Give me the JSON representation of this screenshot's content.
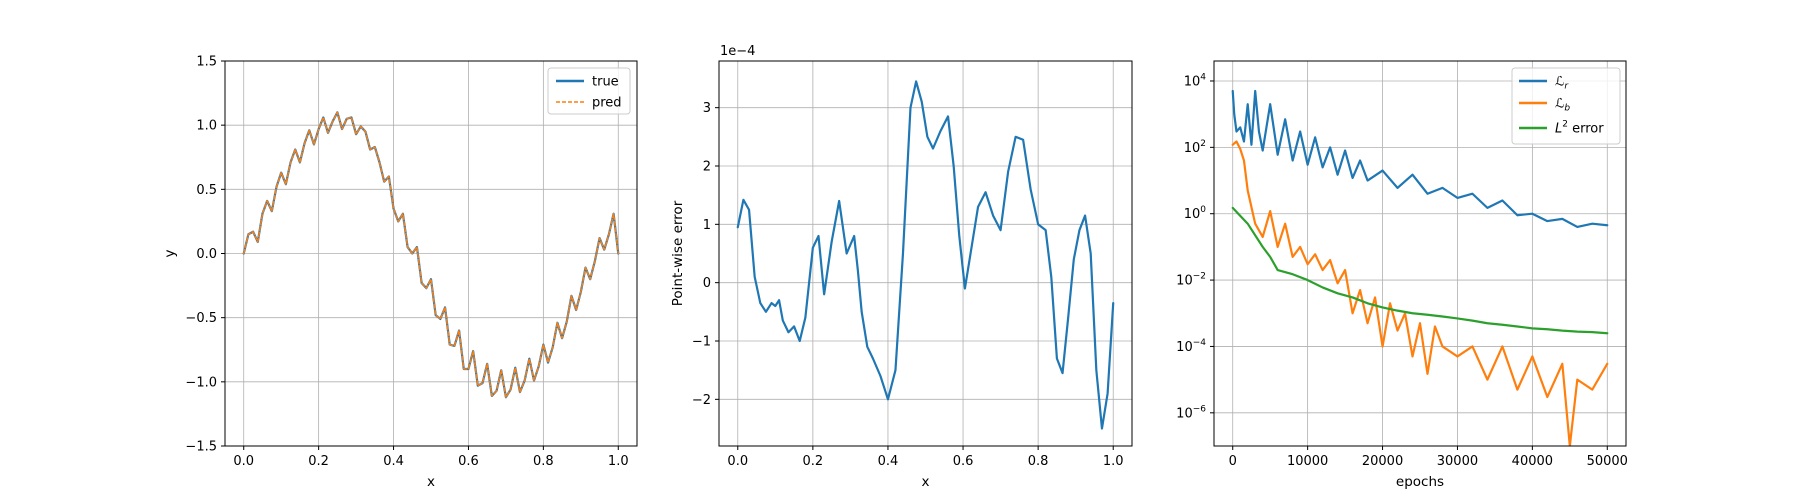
{
  "chart_data": [
    {
      "id": "fit",
      "type": "line",
      "title": "",
      "xlabel": "x",
      "ylabel": "y",
      "xlim": [
        -0.05,
        1.05
      ],
      "ylim": [
        -1.5,
        1.5
      ],
      "xticks": [
        0.0,
        0.2,
        0.4,
        0.6,
        0.8,
        1.0
      ],
      "xtick_labels": [
        "0.0",
        "0.2",
        "0.4",
        "0.6",
        "0.8",
        "1.0"
      ],
      "yticks": [
        -1.5,
        -1.0,
        -0.5,
        0.0,
        0.5,
        1.0,
        1.5
      ],
      "ytick_labels": [
        "−1.5",
        "−1.0",
        "−0.5",
        "0.0",
        "0.5",
        "1.0",
        "1.5"
      ],
      "grid": true,
      "legend_position": "top-right",
      "series": [
        {
          "name": "true",
          "color": "#1f77b4",
          "style": "solid",
          "x": [
            0.0,
            0.0125,
            0.025,
            0.0375,
            0.05,
            0.0625,
            0.075,
            0.0875,
            0.1,
            0.1125,
            0.125,
            0.1375,
            0.15,
            0.1625,
            0.175,
            0.1875,
            0.2,
            0.2125,
            0.225,
            0.2375,
            0.25,
            0.2625,
            0.275,
            0.2875,
            0.3,
            0.3125,
            0.325,
            0.3375,
            0.35,
            0.3625,
            0.375,
            0.3875,
            0.4,
            0.4125,
            0.425,
            0.4375,
            0.45,
            0.4625,
            0.475,
            0.4875,
            0.5,
            0.5125,
            0.525,
            0.5375,
            0.55,
            0.5625,
            0.575,
            0.5875,
            0.6,
            0.6125,
            0.625,
            0.6375,
            0.65,
            0.6625,
            0.675,
            0.6875,
            0.7,
            0.7125,
            0.725,
            0.7375,
            0.75,
            0.7625,
            0.775,
            0.7875,
            0.8,
            0.8125,
            0.825,
            0.8375,
            0.85,
            0.8625,
            0.875,
            0.8875,
            0.9,
            0.9125,
            0.925,
            0.9375,
            0.95,
            0.9625,
            0.975,
            0.9875,
            1.0
          ],
          "y": [
            0.0,
            0.15,
            0.17,
            0.09,
            0.31,
            0.41,
            0.33,
            0.52,
            0.63,
            0.54,
            0.71,
            0.81,
            0.71,
            0.86,
            0.96,
            0.85,
            0.97,
            1.06,
            0.94,
            1.03,
            1.1,
            0.97,
            1.05,
            1.06,
            0.93,
            0.99,
            0.95,
            0.81,
            0.83,
            0.71,
            0.56,
            0.6,
            0.35,
            0.25,
            0.31,
            0.05,
            0.0,
            0.05,
            -0.23,
            -0.27,
            -0.2,
            -0.48,
            -0.51,
            -0.42,
            -0.71,
            -0.72,
            -0.6,
            -0.9,
            -0.9,
            -0.76,
            -1.03,
            -1.01,
            -0.86,
            -1.11,
            -1.07,
            -0.91,
            -1.12,
            -1.06,
            -0.89,
            -1.08,
            -0.99,
            -0.82,
            -0.99,
            -0.88,
            -0.71,
            -0.85,
            -0.73,
            -0.54,
            -0.66,
            -0.53,
            -0.33,
            -0.44,
            -0.3,
            -0.11,
            -0.2,
            -0.06,
            0.12,
            0.03,
            0.15,
            0.31,
            0.0
          ]
        },
        {
          "name": "pred",
          "color": "#ff7f0e",
          "style": "dashed",
          "same_as": "true"
        }
      ]
    },
    {
      "id": "error",
      "type": "line",
      "title": "",
      "xlabel": "x",
      "ylabel": "Point-wise error",
      "offset_text": "1e−4",
      "xlim": [
        -0.05,
        1.05
      ],
      "ylim": [
        -2.8,
        3.8
      ],
      "xticks": [
        0.0,
        0.2,
        0.4,
        0.6,
        0.8,
        1.0
      ],
      "xtick_labels": [
        "0.0",
        "0.2",
        "0.4",
        "0.6",
        "0.8",
        "1.0"
      ],
      "yticks": [
        -2,
        -1,
        0,
        1,
        2,
        3
      ],
      "ytick_labels": [
        "−2",
        "−1",
        "0",
        "1",
        "2",
        "3"
      ],
      "grid": true,
      "series": [
        {
          "name": "",
          "color": "#1f77b4",
          "x": [
            0.0,
            0.015,
            0.03,
            0.045,
            0.06,
            0.075,
            0.09,
            0.1,
            0.11,
            0.12,
            0.135,
            0.15,
            0.165,
            0.18,
            0.2,
            0.215,
            0.23,
            0.25,
            0.27,
            0.29,
            0.31,
            0.32,
            0.33,
            0.345,
            0.36,
            0.38,
            0.4,
            0.42,
            0.44,
            0.46,
            0.475,
            0.49,
            0.505,
            0.52,
            0.54,
            0.56,
            0.575,
            0.59,
            0.605,
            0.62,
            0.64,
            0.66,
            0.68,
            0.7,
            0.72,
            0.74,
            0.76,
            0.78,
            0.8,
            0.82,
            0.835,
            0.85,
            0.865,
            0.88,
            0.895,
            0.91,
            0.925,
            0.94,
            0.955,
            0.97,
            0.985,
            1.0
          ],
          "y": [
            0.95,
            1.42,
            1.25,
            0.1,
            -0.35,
            -0.5,
            -0.35,
            -0.4,
            -0.3,
            -0.65,
            -0.85,
            -0.75,
            -1.0,
            -0.6,
            0.6,
            0.8,
            -0.2,
            0.7,
            1.4,
            0.5,
            0.8,
            0.2,
            -0.5,
            -1.1,
            -1.3,
            -1.6,
            -2.0,
            -1.5,
            0.5,
            3.0,
            3.45,
            3.1,
            2.5,
            2.3,
            2.6,
            2.85,
            2.0,
            0.8,
            -0.1,
            0.5,
            1.3,
            1.55,
            1.15,
            0.9,
            1.9,
            2.5,
            2.45,
            1.6,
            1.0,
            0.9,
            0.1,
            -1.3,
            -1.55,
            -0.6,
            0.4,
            0.9,
            1.15,
            0.5,
            -1.5,
            -2.5,
            -1.9,
            -0.35
          ]
        }
      ]
    },
    {
      "id": "training",
      "type": "line",
      "title": "",
      "xlabel": "epochs",
      "ylabel": "",
      "yscale": "log",
      "xlim": [
        -2500,
        52500
      ],
      "ylim": [
        1e-07,
        40000.0
      ],
      "xticks": [
        0,
        10000,
        20000,
        30000,
        40000,
        50000
      ],
      "xtick_labels": [
        "0",
        "10000",
        "20000",
        "30000",
        "40000",
        "50000"
      ],
      "yticks": [
        1e-06,
        0.0001,
        0.01,
        1,
        100,
        10000
      ],
      "ytick_labels": [
        [
          "10",
          "−6"
        ],
        [
          "10",
          "−4"
        ],
        [
          "10",
          "−2"
        ],
        [
          "10",
          "0"
        ],
        [
          "10",
          "2"
        ],
        [
          "10",
          "4"
        ]
      ],
      "grid": true,
      "legend_position": "top-right",
      "series": [
        {
          "name_main": "ℒ",
          "name_sub": "r",
          "color": "#1f77b4",
          "x": [
            0,
            200,
            500,
            1000,
            1500,
            2000,
            2500,
            3000,
            3500,
            4000,
            5000,
            6000,
            7000,
            8000,
            9000,
            10000,
            11000,
            12000,
            13000,
            14000,
            15000,
            16000,
            17000,
            18000,
            20000,
            22000,
            24000,
            26000,
            28000,
            30000,
            32000,
            34000,
            36000,
            38000,
            40000,
            42000,
            44000,
            46000,
            48000,
            50000
          ],
          "y": [
            5000,
            1000,
            300,
            400,
            150,
            2000,
            120,
            5000,
            300,
            80,
            2000,
            60,
            700,
            40,
            300,
            30,
            200,
            25,
            100,
            15,
            80,
            12,
            40,
            10,
            20,
            6,
            15,
            4,
            6,
            3,
            4,
            1.5,
            2.5,
            0.9,
            1.0,
            0.6,
            0.7,
            0.4,
            0.5,
            0.45
          ]
        },
        {
          "name_main": "ℒ",
          "name_sub": "b",
          "color": "#ff7f0e",
          "x": [
            0,
            500,
            1000,
            1500,
            2000,
            3000,
            4000,
            5000,
            6000,
            7000,
            8000,
            9000,
            10000,
            11000,
            12000,
            13000,
            14000,
            15000,
            16000,
            17000,
            18000,
            19000,
            20000,
            21000,
            22000,
            23000,
            24000,
            25000,
            26000,
            27000,
            28000,
            30000,
            32000,
            34000,
            36000,
            38000,
            40000,
            42000,
            44000,
            45000,
            46000,
            48000,
            50000
          ],
          "y": [
            120,
            150,
            90,
            40,
            5,
            0.5,
            0.2,
            1.2,
            0.1,
            0.5,
            0.05,
            0.1,
            0.03,
            0.06,
            0.02,
            0.04,
            0.008,
            0.02,
            0.001,
            0.005,
            0.0005,
            0.003,
            0.0001,
            0.002,
            0.0003,
            0.001,
            5e-05,
            0.0005,
            1.5e-05,
            0.0004,
            0.0001,
            5e-05,
            0.0001,
            1e-05,
            0.0001,
            5e-06,
            5e-05,
            3e-06,
            3e-05,
            1e-07,
            1e-05,
            5e-06,
            3e-05
          ]
        },
        {
          "name_main": "L",
          "name_sup": "2",
          "name_rest": " error",
          "color": "#2ca02c",
          "x": [
            0,
            2000,
            4000,
            5000,
            6000,
            8000,
            10000,
            12000,
            14000,
            16000,
            18000,
            20000,
            22000,
            24000,
            26000,
            28000,
            30000,
            32000,
            34000,
            36000,
            38000,
            40000,
            42000,
            44000,
            46000,
            48000,
            50000
          ],
          "y": [
            1.5,
            0.5,
            0.1,
            0.05,
            0.02,
            0.015,
            0.01,
            0.006,
            0.004,
            0.003,
            0.002,
            0.0015,
            0.0012,
            0.001,
            0.0009,
            0.0008,
            0.0007,
            0.0006,
            0.0005,
            0.00045,
            0.0004,
            0.00035,
            0.00033,
            0.0003,
            0.00028,
            0.00027,
            0.00025
          ]
        }
      ]
    }
  ]
}
